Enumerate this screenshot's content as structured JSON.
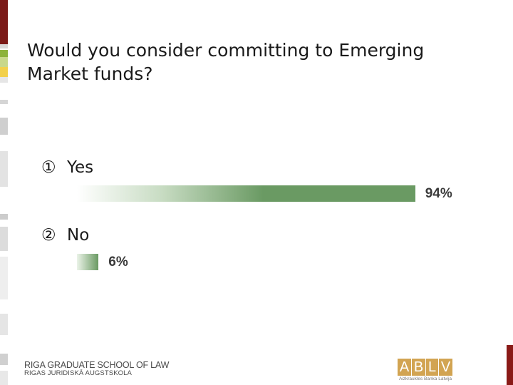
{
  "slide": {
    "question": "Would you consider committing to Emerging Market funds?"
  },
  "chart_data": {
    "type": "bar",
    "orientation": "horizontal",
    "categories": [
      "Yes",
      "No"
    ],
    "markers": [
      "①",
      "②"
    ],
    "values": [
      94,
      6
    ],
    "value_labels": [
      "94%",
      "6%"
    ],
    "unit": "%",
    "xlim": [
      0,
      100
    ],
    "bar_color": "#6a9a63",
    "grid": false,
    "legend": "none"
  },
  "footer": {
    "school_line1": "RIGA GRADUATE SCHOOL OF LAW",
    "school_line2": "RIGAS JURIDISKĀ AUGSTSKOLA",
    "logo_letters": [
      "A",
      "B",
      "L",
      "V"
    ],
    "logo_text": "ABLV",
    "logo_subtitle": "Aizkraukles Banka Latvija",
    "logo_color": "#d2a452"
  },
  "colors": {
    "stripe_dark_red": "#7b1a18",
    "stripe_green": "#8db33a",
    "stripe_yellow": "#f2d04a",
    "accent_red": "#8a1a17"
  }
}
